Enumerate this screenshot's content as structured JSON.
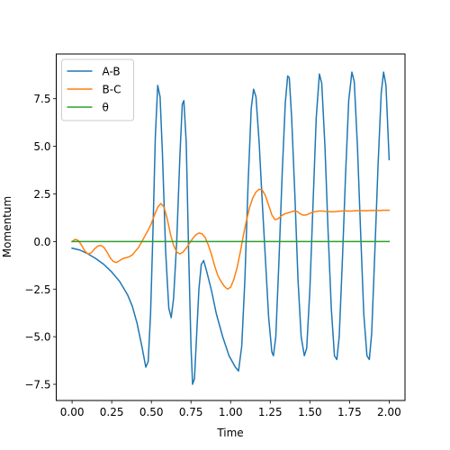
{
  "chart_data": {
    "type": "line",
    "xlabel": "Time",
    "ylabel": "Momentum",
    "xlim": [
      -0.1,
      2.1
    ],
    "ylim": [
      -8.35,
      9.85
    ],
    "xticks": [
      0.0,
      0.25,
      0.5,
      0.75,
      1.0,
      1.25,
      1.5,
      1.75,
      2.0
    ],
    "xtick_labels": [
      "0.00",
      "0.25",
      "0.50",
      "0.75",
      "1.00",
      "1.25",
      "1.50",
      "1.75",
      "2.00"
    ],
    "yticks": [
      -7.5,
      -5.0,
      -2.5,
      0.0,
      2.5,
      5.0,
      7.5
    ],
    "ytick_labels": [
      "−7.5",
      "−5.0",
      "−2.5",
      "0.0",
      "2.5",
      "5.0",
      "7.5"
    ],
    "grid": false,
    "legend_position": "top-left",
    "series": [
      {
        "name": "A-B",
        "color": "#1f77b4",
        "points": [
          [
            0.0,
            -0.35
          ],
          [
            0.05,
            -0.45
          ],
          [
            0.1,
            -0.65
          ],
          [
            0.15,
            -0.9
          ],
          [
            0.2,
            -1.2
          ],
          [
            0.25,
            -1.6
          ],
          [
            0.3,
            -2.1
          ],
          [
            0.35,
            -2.8
          ],
          [
            0.38,
            -3.4
          ],
          [
            0.41,
            -4.3
          ],
          [
            0.44,
            -5.5
          ],
          [
            0.465,
            -6.6
          ],
          [
            0.48,
            -6.3
          ],
          [
            0.495,
            -3.8
          ],
          [
            0.51,
            0.5
          ],
          [
            0.525,
            5.5
          ],
          [
            0.54,
            8.2
          ],
          [
            0.555,
            7.6
          ],
          [
            0.57,
            4.6
          ],
          [
            0.59,
            -0.5
          ],
          [
            0.61,
            -3.5
          ],
          [
            0.625,
            -4.0
          ],
          [
            0.64,
            -3.0
          ],
          [
            0.66,
            0.0
          ],
          [
            0.68,
            4.5
          ],
          [
            0.695,
            7.2
          ],
          [
            0.705,
            7.4
          ],
          [
            0.72,
            5.2
          ],
          [
            0.735,
            -0.5
          ],
          [
            0.75,
            -5.5
          ],
          [
            0.76,
            -7.5
          ],
          [
            0.772,
            -7.2
          ],
          [
            0.785,
            -5.0
          ],
          [
            0.8,
            -2.5
          ],
          [
            0.815,
            -1.2
          ],
          [
            0.83,
            -1.0
          ],
          [
            0.85,
            -1.6
          ],
          [
            0.88,
            -2.6
          ],
          [
            0.91,
            -3.8
          ],
          [
            0.95,
            -5.0
          ],
          [
            0.99,
            -6.0
          ],
          [
            1.03,
            -6.6
          ],
          [
            1.05,
            -6.8
          ],
          [
            1.07,
            -5.5
          ],
          [
            1.09,
            -2.0
          ],
          [
            1.11,
            3.0
          ],
          [
            1.13,
            7.0
          ],
          [
            1.145,
            8.0
          ],
          [
            1.16,
            7.6
          ],
          [
            1.18,
            5.2
          ],
          [
            1.2,
            2.0
          ],
          [
            1.22,
            -1.0
          ],
          [
            1.24,
            -4.0
          ],
          [
            1.26,
            -5.8
          ],
          [
            1.27,
            -6.0
          ],
          [
            1.285,
            -5.0
          ],
          [
            1.305,
            -1.0
          ],
          [
            1.325,
            3.5
          ],
          [
            1.345,
            7.3
          ],
          [
            1.36,
            8.7
          ],
          [
            1.37,
            8.6
          ],
          [
            1.385,
            6.5
          ],
          [
            1.405,
            2.5
          ],
          [
            1.425,
            -2.0
          ],
          [
            1.445,
            -5.0
          ],
          [
            1.465,
            -6.0
          ],
          [
            1.48,
            -5.6
          ],
          [
            1.5,
            -2.5
          ],
          [
            1.52,
            2.0
          ],
          [
            1.54,
            6.5
          ],
          [
            1.56,
            8.8
          ],
          [
            1.575,
            8.3
          ],
          [
            1.595,
            5.0
          ],
          [
            1.615,
            0.5
          ],
          [
            1.635,
            -3.5
          ],
          [
            1.655,
            -6.0
          ],
          [
            1.67,
            -6.2
          ],
          [
            1.685,
            -5.0
          ],
          [
            1.705,
            -1.0
          ],
          [
            1.725,
            3.5
          ],
          [
            1.745,
            7.4
          ],
          [
            1.765,
            8.9
          ],
          [
            1.78,
            8.4
          ],
          [
            1.8,
            5.0
          ],
          [
            1.82,
            0.5
          ],
          [
            1.84,
            -3.8
          ],
          [
            1.86,
            -6.0
          ],
          [
            1.875,
            -6.2
          ],
          [
            1.89,
            -4.8
          ],
          [
            1.91,
            -0.5
          ],
          [
            1.93,
            4.0
          ],
          [
            1.95,
            7.8
          ],
          [
            1.965,
            8.9
          ],
          [
            1.98,
            8.2
          ],
          [
            2.0,
            4.3
          ]
        ]
      },
      {
        "name": "B-C",
        "color": "#ff7f0e",
        "points": [
          [
            0.0,
            0.0
          ],
          [
            0.02,
            0.12
          ],
          [
            0.04,
            0.05
          ],
          [
            0.06,
            -0.2
          ],
          [
            0.08,
            -0.5
          ],
          [
            0.1,
            -0.65
          ],
          [
            0.12,
            -0.6
          ],
          [
            0.14,
            -0.4
          ],
          [
            0.16,
            -0.25
          ],
          [
            0.18,
            -0.2
          ],
          [
            0.2,
            -0.3
          ],
          [
            0.22,
            -0.55
          ],
          [
            0.24,
            -0.85
          ],
          [
            0.26,
            -1.05
          ],
          [
            0.28,
            -1.1
          ],
          [
            0.3,
            -1.0
          ],
          [
            0.32,
            -0.9
          ],
          [
            0.34,
            -0.85
          ],
          [
            0.36,
            -0.8
          ],
          [
            0.38,
            -0.7
          ],
          [
            0.4,
            -0.5
          ],
          [
            0.42,
            -0.3
          ],
          [
            0.44,
            0.0
          ],
          [
            0.46,
            0.3
          ],
          [
            0.48,
            0.6
          ],
          [
            0.5,
            0.95
          ],
          [
            0.52,
            1.4
          ],
          [
            0.54,
            1.8
          ],
          [
            0.56,
            2.0
          ],
          [
            0.58,
            1.8
          ],
          [
            0.6,
            1.2
          ],
          [
            0.62,
            0.4
          ],
          [
            0.64,
            -0.2
          ],
          [
            0.66,
            -0.55
          ],
          [
            0.68,
            -0.65
          ],
          [
            0.7,
            -0.55
          ],
          [
            0.72,
            -0.35
          ],
          [
            0.74,
            -0.1
          ],
          [
            0.76,
            0.15
          ],
          [
            0.78,
            0.35
          ],
          [
            0.8,
            0.45
          ],
          [
            0.82,
            0.4
          ],
          [
            0.84,
            0.2
          ],
          [
            0.86,
            -0.2
          ],
          [
            0.88,
            -0.7
          ],
          [
            0.9,
            -1.3
          ],
          [
            0.92,
            -1.8
          ],
          [
            0.94,
            -2.1
          ],
          [
            0.96,
            -2.35
          ],
          [
            0.98,
            -2.5
          ],
          [
            1.0,
            -2.4
          ],
          [
            1.02,
            -2.0
          ],
          [
            1.04,
            -1.4
          ],
          [
            1.06,
            -0.6
          ],
          [
            1.08,
            0.3
          ],
          [
            1.1,
            1.1
          ],
          [
            1.12,
            1.8
          ],
          [
            1.14,
            2.3
          ],
          [
            1.16,
            2.6
          ],
          [
            1.18,
            2.75
          ],
          [
            1.2,
            2.7
          ],
          [
            1.22,
            2.4
          ],
          [
            1.24,
            1.9
          ],
          [
            1.26,
            1.4
          ],
          [
            1.28,
            1.15
          ],
          [
            1.3,
            1.2
          ],
          [
            1.32,
            1.35
          ],
          [
            1.34,
            1.45
          ],
          [
            1.36,
            1.5
          ],
          [
            1.38,
            1.55
          ],
          [
            1.4,
            1.6
          ],
          [
            1.42,
            1.58
          ],
          [
            1.44,
            1.45
          ],
          [
            1.46,
            1.38
          ],
          [
            1.48,
            1.4
          ],
          [
            1.5,
            1.48
          ],
          [
            1.52,
            1.55
          ],
          [
            1.54,
            1.58
          ],
          [
            1.56,
            1.6
          ],
          [
            1.58,
            1.6
          ],
          [
            1.6,
            1.58
          ],
          [
            1.62,
            1.57
          ],
          [
            1.64,
            1.56
          ],
          [
            1.66,
            1.57
          ],
          [
            1.68,
            1.59
          ],
          [
            1.7,
            1.6
          ],
          [
            1.72,
            1.61
          ],
          [
            1.74,
            1.6
          ],
          [
            1.76,
            1.6
          ],
          [
            1.78,
            1.61
          ],
          [
            1.8,
            1.62
          ],
          [
            1.82,
            1.62
          ],
          [
            1.84,
            1.62
          ],
          [
            1.86,
            1.62
          ],
          [
            1.88,
            1.63
          ],
          [
            1.9,
            1.63
          ],
          [
            1.92,
            1.63
          ],
          [
            1.94,
            1.63
          ],
          [
            1.96,
            1.64
          ],
          [
            1.98,
            1.64
          ],
          [
            2.0,
            1.64
          ]
        ]
      },
      {
        "name": "θ",
        "color": "#2ca02c",
        "points": [
          [
            0.0,
            0.0
          ],
          [
            2.0,
            0.0
          ]
        ]
      }
    ]
  }
}
